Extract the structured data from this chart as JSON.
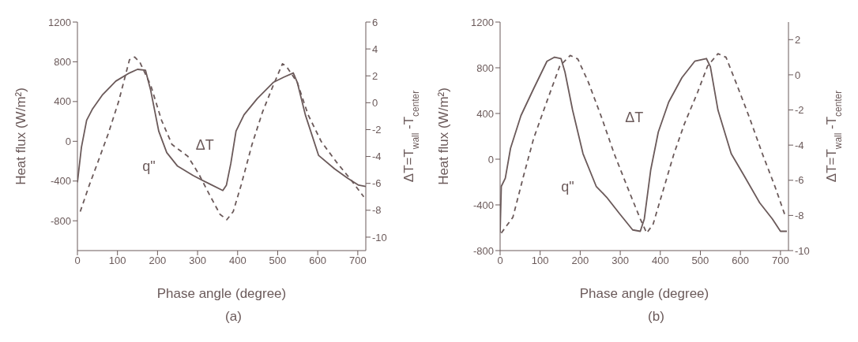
{
  "chart_data": [
    {
      "type": "line",
      "xlabel": "Phase angle (degree)",
      "ylabel": "Heat flux (W/m²)",
      "y2label": "ΔT=T$_{wall}$-T$_{center}$",
      "xlim": [
        0,
        720
      ],
      "xticks": [
        0,
        100,
        200,
        300,
        400,
        500,
        600,
        700
      ],
      "ylim": [
        -1100,
        1200
      ],
      "yticks": [
        -800,
        -400,
        0,
        400,
        800,
        1200
      ],
      "y2lim": [
        -11,
        6
      ],
      "y2ticks": [
        -10,
        -8,
        -6,
        -4,
        -2,
        0,
        2,
        4,
        6
      ],
      "grid": false,
      "marker": "none",
      "series": [
        {
          "name": "q\"",
          "color": "#6b5a5a",
          "line_style": "solid",
          "x": [
            0,
            10,
            23,
            37,
            63,
            96,
            130,
            150,
            170,
            183,
            203,
            223,
            250,
            289,
            329,
            363,
            372,
            383,
            396,
            416,
            449,
            489,
            516,
            539,
            549,
            569,
            602,
            642,
            675,
            702,
            720
          ],
          "values": [
            -413,
            -60,
            212,
            321,
            470,
            606,
            688,
            724,
            715,
            511,
            103,
            -114,
            -250,
            -345,
            -427,
            -495,
            -441,
            -223,
            103,
            267,
            430,
            593,
            647,
            688,
            593,
            267,
            -141,
            -277,
            -373,
            -441,
            -454
          ]
        },
        {
          "name": "ΔT",
          "color": "#6b5a5a",
          "line_style": "dashed",
          "axis": "y2",
          "x": [
            7,
            30,
            50,
            77,
            103,
            130,
            143,
            156,
            183,
            210,
            236,
            276,
            303,
            329,
            356,
            373,
            389,
            409,
            436,
            462,
            489,
            512,
            522,
            549,
            576,
            609,
            649,
            682,
            715
          ],
          "values": [
            -8.1,
            -6.1,
            -4.5,
            -2.3,
            0.1,
            3.2,
            3.4,
            3.0,
            1.3,
            -1.3,
            -3.1,
            -4.0,
            -5.3,
            -6.8,
            -8.3,
            -8.7,
            -8.1,
            -6.1,
            -3.1,
            -0.7,
            1.3,
            2.9,
            2.7,
            1.5,
            -0.9,
            -2.9,
            -4.5,
            -5.7,
            -7.0
          ]
        }
      ],
      "annotations": [
        "(a)"
      ]
    },
    {
      "type": "line",
      "xlabel": "Phase angle (degree)",
      "ylabel": "Heat flux (W/m²)",
      "y2label": "ΔT=T$_{wall}$-T$_{center}$",
      "xlim": [
        0,
        720
      ],
      "xticks": [
        0,
        100,
        200,
        300,
        400,
        500,
        600,
        700
      ],
      "ylim": [
        -800,
        1200
      ],
      "yticks": [
        -800,
        -400,
        0,
        400,
        800,
        1200
      ],
      "y2lim": [
        -10,
        3
      ],
      "y2ticks": [
        -10,
        -8,
        -6,
        -4,
        -2,
        0,
        2
      ],
      "grid": false,
      "marker": "none",
      "series": [
        {
          "name": "q\"",
          "color": "#6b5a5a",
          "line_style": "solid",
          "x": [
            0,
            3,
            13,
            26,
            52,
            84,
            117,
            136,
            152,
            162,
            181,
            207,
            240,
            266,
            298,
            331,
            350,
            360,
            376,
            395,
            421,
            454,
            486,
            515,
            525,
            544,
            577,
            609,
            648,
            680,
            700,
            716
          ],
          "values": [
            -643,
            -238,
            -167,
            95,
            381,
            619,
            857,
            893,
            881,
            762,
            429,
            48,
            -238,
            -333,
            -476,
            -619,
            -631,
            -524,
            -95,
            238,
            500,
            714,
            857,
            881,
            810,
            429,
            48,
            -143,
            -381,
            -524,
            -631,
            -631
          ]
        },
        {
          "name": "ΔT",
          "color": "#6b5a5a",
          "line_style": "dashed",
          "axis": "y2",
          "x": [
            3,
            32,
            58,
            84,
            117,
            149,
            175,
            194,
            220,
            253,
            285,
            318,
            350,
            366,
            382,
            408,
            434,
            460,
            493,
            518,
            544,
            564,
            590,
            622,
            655,
            687,
            713
          ],
          "values": [
            -9.0,
            -8.1,
            -5.8,
            -3.6,
            -1.5,
            0.5,
            1.1,
            0.9,
            -0.4,
            -2.4,
            -4.5,
            -6.4,
            -8.2,
            -9.0,
            -8.5,
            -6.5,
            -4.5,
            -2.8,
            -1.0,
            0.5,
            1.2,
            1.0,
            -0.5,
            -2.4,
            -4.5,
            -6.4,
            -8.1
          ]
        }
      ],
      "annotations": [
        "(b)"
      ]
    }
  ]
}
